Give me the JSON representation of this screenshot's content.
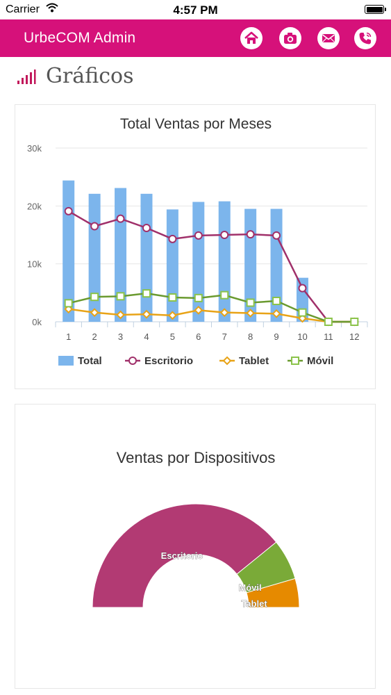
{
  "status_bar": {
    "carrier": "Carrier",
    "time": "4:57 PM"
  },
  "app_bar": {
    "title": "UrbeCOM Admin",
    "background": "#d6117a",
    "buttons": [
      {
        "icon": "home-icon"
      },
      {
        "icon": "camera-icon"
      },
      {
        "icon": "mail-icon"
      },
      {
        "icon": "phone-icon"
      }
    ]
  },
  "page": {
    "heading": "Gráficos",
    "heading_icon": "signal-bars-icon",
    "accent": "#c2185b"
  },
  "chart_data": [
    {
      "type": "bar",
      "title": "Total Ventas por Meses",
      "categories": [
        "1",
        "2",
        "3",
        "4",
        "5",
        "6",
        "7",
        "8",
        "9",
        "10",
        "11",
        "12"
      ],
      "ylim": [
        0,
        30000
      ],
      "y_ticks": [
        {
          "value": 0,
          "label": "0k"
        },
        {
          "value": 10000,
          "label": "10k"
        },
        {
          "value": 20000,
          "label": "20k"
        },
        {
          "value": 30000,
          "label": "30k"
        }
      ],
      "grid": true,
      "legend_position": "bottom",
      "series": [
        {
          "name": "Total",
          "type": "bar",
          "color": "#7cb5ec",
          "marker": "square",
          "values": [
            24400,
            22100,
            23100,
            22100,
            19400,
            20700,
            20800,
            19500,
            19500,
            7600,
            0,
            0
          ]
        },
        {
          "name": "Escritorio",
          "type": "line",
          "color": "#a0306a",
          "marker": "circle",
          "values": [
            19100,
            16500,
            17800,
            16200,
            14300,
            14900,
            15000,
            15100,
            14900,
            5800,
            0,
            0
          ]
        },
        {
          "name": "Tablet",
          "type": "line",
          "color": "#e8a317",
          "marker": "diamond",
          "values": [
            2200,
            1600,
            1200,
            1300,
            1100,
            2000,
            1600,
            1500,
            1400,
            600,
            0,
            0
          ]
        },
        {
          "name": "Móvil",
          "type": "line",
          "color": "#8bc34a",
          "line_color": "#6a9a2f",
          "marker": "square",
          "values": [
            3200,
            4300,
            4400,
            4900,
            4200,
            4100,
            4600,
            3300,
            3600,
            1600,
            0,
            0
          ]
        }
      ]
    },
    {
      "type": "pie",
      "variant": "semi-donut",
      "title": "Ventas por Dispositivos",
      "slices": [
        {
          "label": "Escritorio",
          "value": 78.3,
          "color": "#b23a73"
        },
        {
          "label": "Móvil",
          "value": 12.7,
          "color": "#7aaa38"
        },
        {
          "label": "Tablet",
          "value": 9.0,
          "color": "#e68a00"
        }
      ]
    }
  ]
}
